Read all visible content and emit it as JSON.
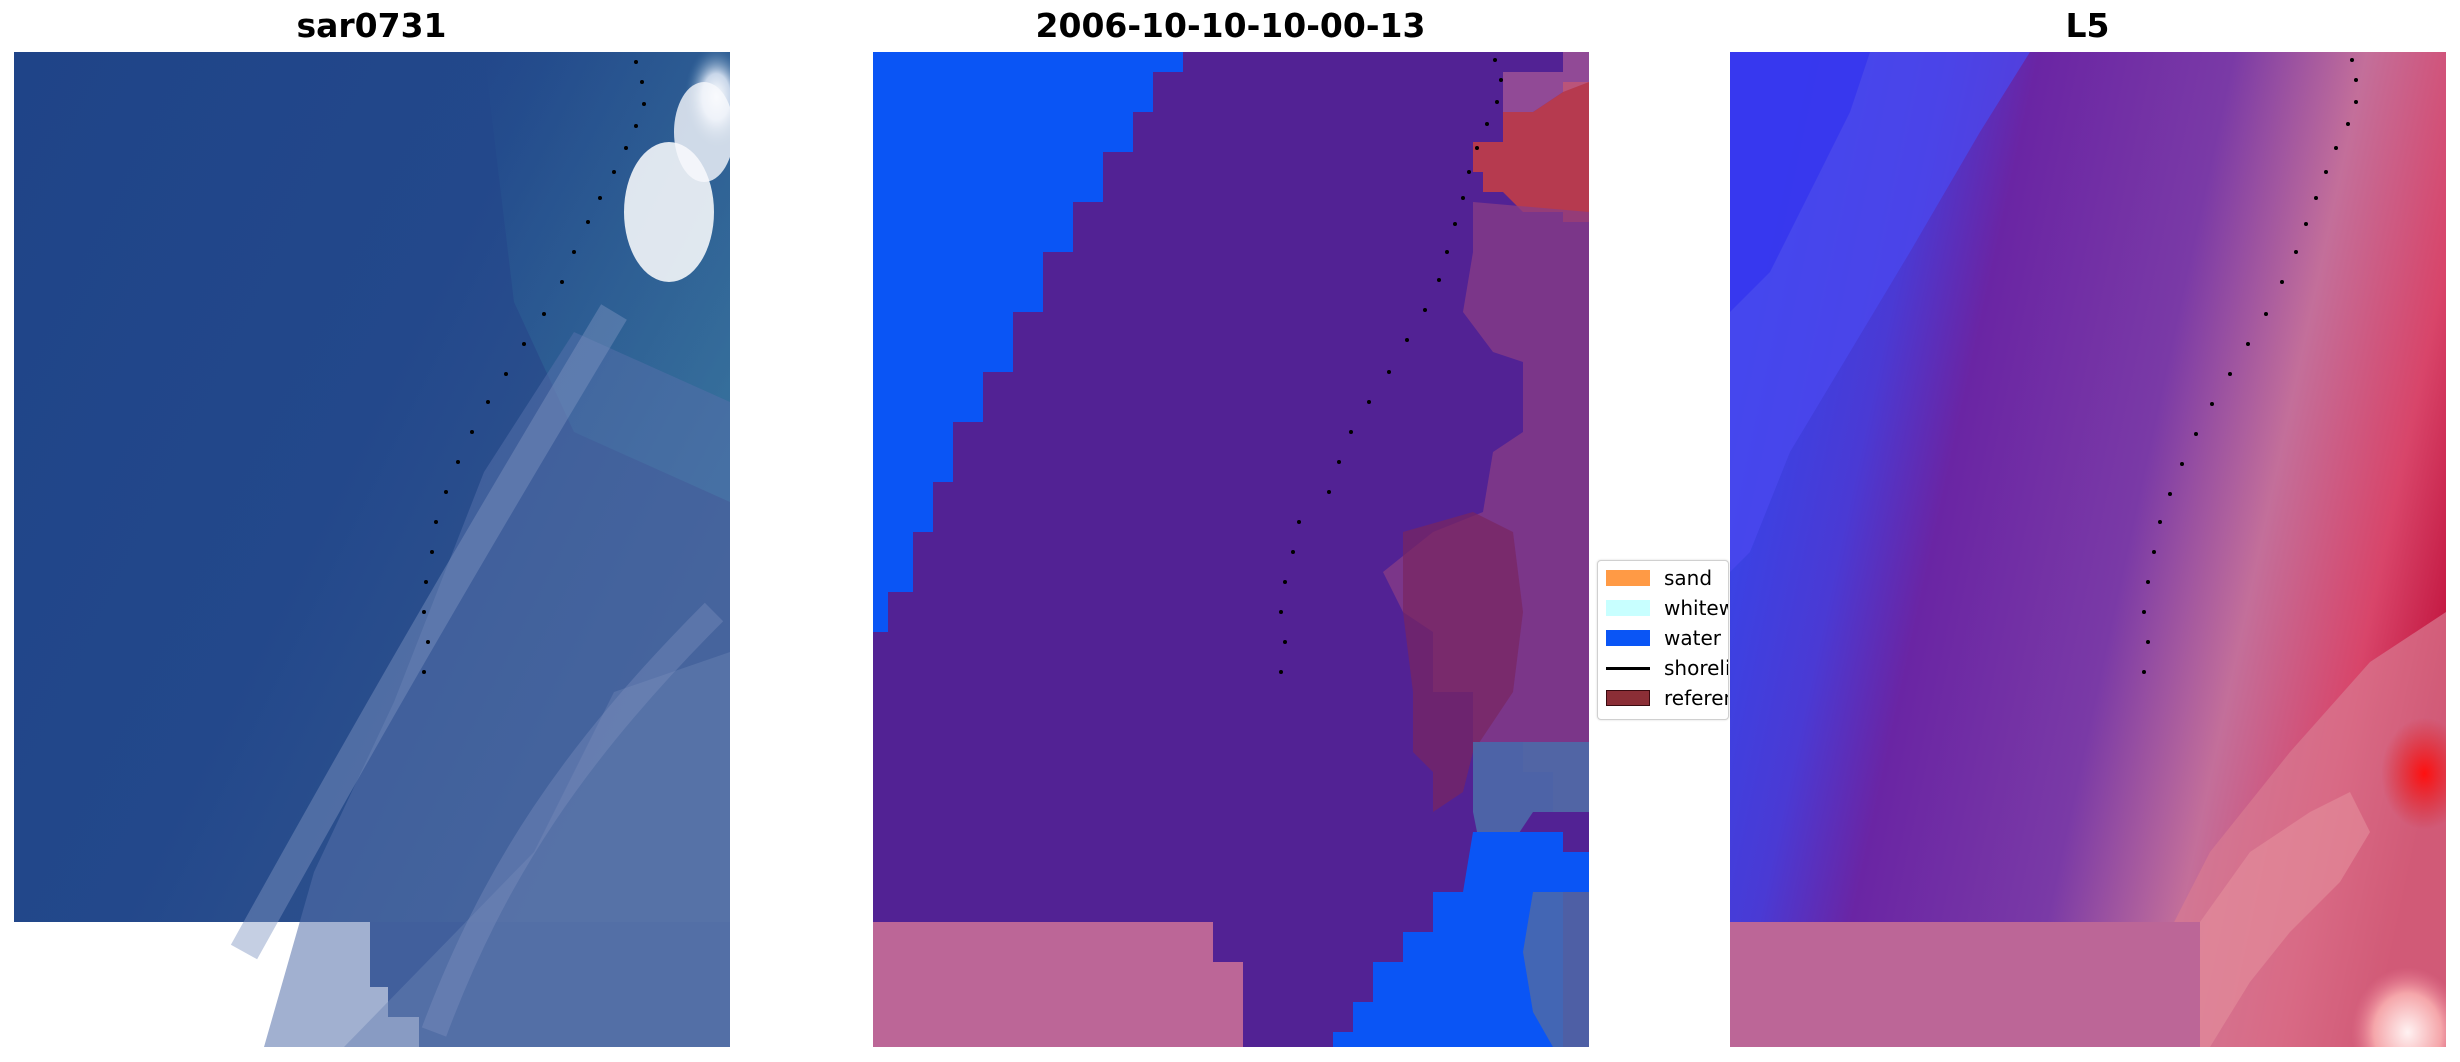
{
  "panels": [
    {
      "title": "sar0731"
    },
    {
      "title": "2006-10-10-10-00-13"
    },
    {
      "title": "L5"
    }
  ],
  "legend": {
    "items": [
      {
        "label": "sand",
        "color": "#ff9a45",
        "kind": "patch"
      },
      {
        "label": "whitewater",
        "color": "#c8ffff",
        "kind": "patch"
      },
      {
        "label": "water",
        "color": "#0a55f5",
        "kind": "patch"
      },
      {
        "label": "shoreline",
        "color": "#000000",
        "kind": "line"
      },
      {
        "label": "reference",
        "color": "#8b2e36",
        "kind": "patch"
      }
    ]
  },
  "colors": {
    "sea_dark": "#214487",
    "surf_white": "#f4f7fb",
    "class_water": "#0a55f5",
    "class_other": "#522294",
    "class_sand_overlay": "#bc6697",
    "class_reference": "#b63a4f",
    "prob_blue": "#3545ea",
    "prob_purple": "#6a25a4",
    "prob_red": "#e01818"
  }
}
